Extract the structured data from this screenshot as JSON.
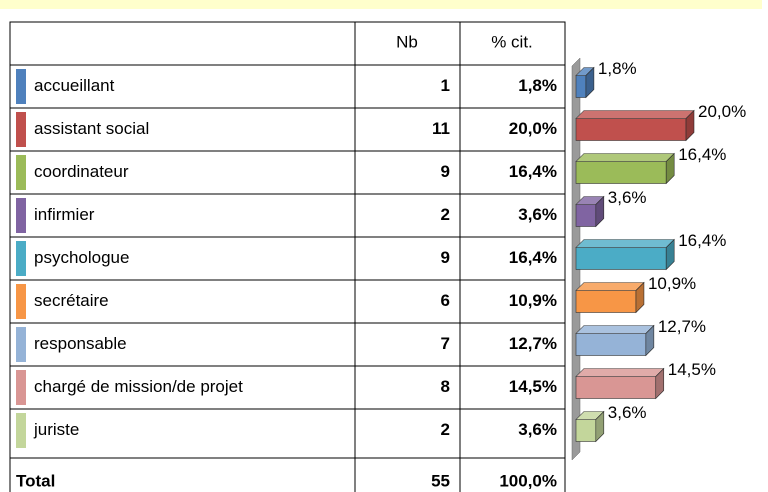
{
  "chart_data": {
    "type": "bar",
    "orientation": "horizontal",
    "columns": [
      "Nb",
      "% cit."
    ],
    "categories": [
      "accueillant",
      "assistant social",
      "coordinateur",
      "infirmier",
      "psychologue",
      "secrétaire",
      "responsable",
      "chargé de mission/de projet",
      "juriste"
    ],
    "counts": [
      1,
      11,
      9,
      2,
      9,
      6,
      7,
      8,
      2
    ],
    "values": [
      1.8,
      20.0,
      16.4,
      3.6,
      16.4,
      10.9,
      12.7,
      14.5,
      3.6
    ],
    "value_labels": [
      "1,8%",
      "20,0%",
      "16,4%",
      "3,6%",
      "16,4%",
      "10,9%",
      "12,7%",
      "14,5%",
      "3,6%"
    ],
    "colors": [
      "#4f81bd",
      "#c0504d",
      "#9bbb59",
      "#8064a2",
      "#4bacc6",
      "#f79646",
      "#95b3d7",
      "#d99694",
      "#c3d69b"
    ],
    "xlim": [
      0,
      20
    ],
    "total_label": "Total",
    "total_count": 55,
    "total_percent_label": "100,0%"
  }
}
